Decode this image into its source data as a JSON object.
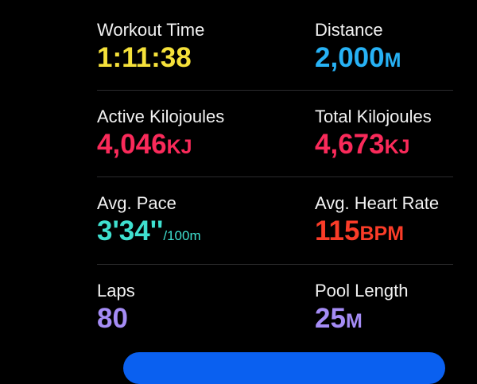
{
  "colors": {
    "time": "#f5e13a",
    "distance": "#27b2f5",
    "energy": "#fa2a5a",
    "pace": "#3fe0d0",
    "heart": "#fa3c28",
    "pool": "#a58cf5",
    "button": "#0a60f0"
  },
  "metrics": [
    {
      "label": "Workout Time",
      "value": "1:11:38",
      "unit": ""
    },
    {
      "label": "Distance",
      "value": "2,000",
      "unit": "M"
    },
    {
      "label": "Active Kilojoules",
      "value": "4,046",
      "unit": "KJ"
    },
    {
      "label": "Total Kilojoules",
      "value": "4,673",
      "unit": "KJ"
    },
    {
      "label": "Avg. Pace",
      "value": "3'34''",
      "unit": "/100m"
    },
    {
      "label": "Avg. Heart Rate",
      "value": "115",
      "unit": "BPM"
    },
    {
      "label": "Laps",
      "value": "80",
      "unit": ""
    },
    {
      "label": "Pool Length",
      "value": "25",
      "unit": "M"
    }
  ]
}
